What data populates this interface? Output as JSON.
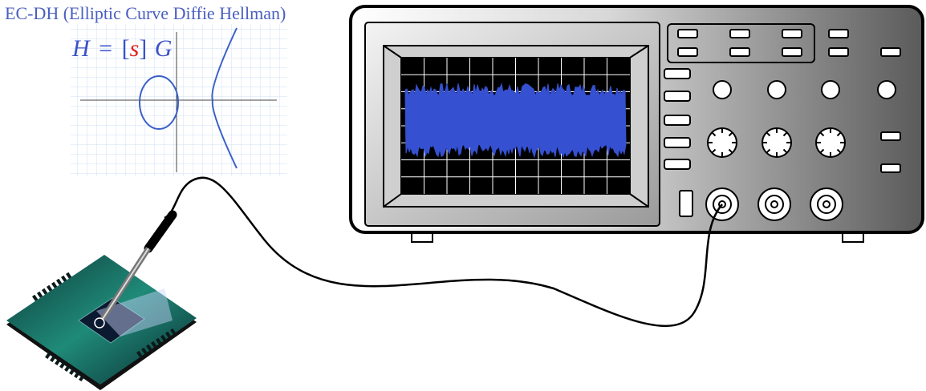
{
  "title": "EC-DH (Elliptic Curve Diffie Hellman)",
  "formula": {
    "lhs": "H",
    "equals": "=",
    "open": "[",
    "scalar": "s",
    "close": "]",
    "point": "G"
  }
}
